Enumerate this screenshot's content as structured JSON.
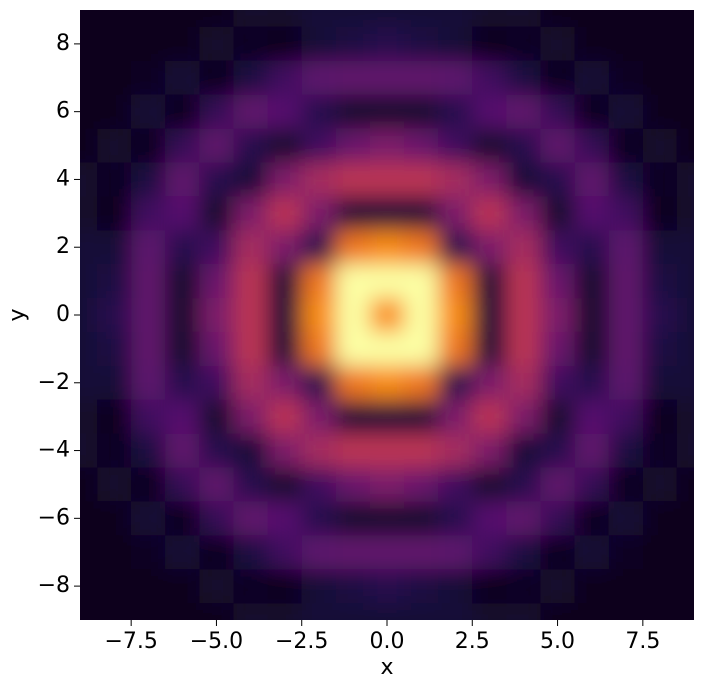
{
  "chart_data": {
    "type": "heatmap",
    "colormap": "inferno",
    "x_label": "x",
    "y_label": "y",
    "x": [
      -9,
      -8,
      -7,
      -6,
      -5,
      -4,
      -3,
      -2,
      -1,
      0,
      1,
      2,
      3,
      4,
      5,
      6,
      7,
      8,
      9
    ],
    "y": [
      9,
      8,
      7,
      6,
      5,
      4,
      3,
      2,
      1,
      0,
      -1,
      -2,
      -3,
      -4,
      -5,
      -6,
      -7,
      -8,
      -9
    ],
    "z": [
      [
        0.05,
        0.05,
        0.05,
        0.05,
        0.05,
        0.08,
        0.08,
        0.1,
        0.1,
        0.1,
        0.1,
        0.1,
        0.08,
        0.08,
        0.05,
        0.05,
        0.05,
        0.05,
        0.05
      ],
      [
        0.05,
        0.05,
        0.05,
        0.05,
        0.08,
        0.06,
        0.05,
        0.1,
        0.12,
        0.15,
        0.12,
        0.1,
        0.05,
        0.06,
        0.08,
        0.05,
        0.05,
        0.05,
        0.05
      ],
      [
        0.05,
        0.05,
        0.06,
        0.1,
        0.05,
        0.12,
        0.2,
        0.27,
        0.28,
        0.28,
        0.28,
        0.27,
        0.2,
        0.12,
        0.05,
        0.1,
        0.06,
        0.05,
        0.05
      ],
      [
        0.05,
        0.05,
        0.1,
        0.05,
        0.18,
        0.28,
        0.25,
        0.15,
        0.08,
        0.08,
        0.08,
        0.15,
        0.25,
        0.28,
        0.18,
        0.05,
        0.1,
        0.05,
        0.05
      ],
      [
        0.05,
        0.08,
        0.05,
        0.18,
        0.28,
        0.15,
        0.08,
        0.2,
        0.3,
        0.35,
        0.3,
        0.2,
        0.08,
        0.15,
        0.28,
        0.18,
        0.05,
        0.08,
        0.05
      ],
      [
        0.08,
        0.06,
        0.12,
        0.28,
        0.15,
        0.1,
        0.35,
        0.45,
        0.5,
        0.5,
        0.5,
        0.45,
        0.35,
        0.1,
        0.15,
        0.28,
        0.12,
        0.06,
        0.08
      ],
      [
        0.08,
        0.05,
        0.2,
        0.25,
        0.08,
        0.35,
        0.5,
        0.35,
        0.1,
        0.1,
        0.1,
        0.35,
        0.5,
        0.35,
        0.08,
        0.25,
        0.2,
        0.05,
        0.08
      ],
      [
        0.1,
        0.1,
        0.27,
        0.15,
        0.2,
        0.45,
        0.35,
        0.15,
        0.7,
        0.75,
        0.7,
        0.15,
        0.35,
        0.45,
        0.2,
        0.15,
        0.27,
        0.1,
        0.1
      ],
      [
        0.1,
        0.12,
        0.28,
        0.08,
        0.3,
        0.5,
        0.1,
        0.7,
        1,
        1,
        1,
        0.7,
        0.1,
        0.5,
        0.3,
        0.08,
        0.28,
        0.12,
        0.1
      ],
      [
        0.1,
        0.15,
        0.28,
        0.08,
        0.35,
        0.5,
        0.1,
        0.75,
        1,
        0.75,
        1,
        0.75,
        0.1,
        0.5,
        0.35,
        0.08,
        0.28,
        0.15,
        0.1
      ],
      [
        0.1,
        0.12,
        0.28,
        0.08,
        0.3,
        0.5,
        0.1,
        0.7,
        1,
        1,
        1,
        0.7,
        0.1,
        0.5,
        0.3,
        0.08,
        0.28,
        0.12,
        0.1
      ],
      [
        0.1,
        0.1,
        0.27,
        0.15,
        0.2,
        0.45,
        0.35,
        0.15,
        0.7,
        0.75,
        0.7,
        0.15,
        0.35,
        0.45,
        0.2,
        0.15,
        0.27,
        0.1,
        0.1
      ],
      [
        0.08,
        0.05,
        0.2,
        0.25,
        0.08,
        0.35,
        0.5,
        0.35,
        0.1,
        0.1,
        0.1,
        0.35,
        0.5,
        0.35,
        0.08,
        0.25,
        0.2,
        0.05,
        0.08
      ],
      [
        0.08,
        0.06,
        0.12,
        0.28,
        0.15,
        0.1,
        0.35,
        0.45,
        0.5,
        0.5,
        0.5,
        0.45,
        0.35,
        0.1,
        0.15,
        0.28,
        0.12,
        0.06,
        0.08
      ],
      [
        0.05,
        0.08,
        0.05,
        0.18,
        0.28,
        0.15,
        0.08,
        0.2,
        0.3,
        0.35,
        0.3,
        0.2,
        0.08,
        0.15,
        0.28,
        0.18,
        0.05,
        0.08,
        0.05
      ],
      [
        0.05,
        0.05,
        0.1,
        0.05,
        0.18,
        0.28,
        0.25,
        0.15,
        0.08,
        0.08,
        0.08,
        0.15,
        0.25,
        0.28,
        0.18,
        0.05,
        0.1,
        0.05,
        0.05
      ],
      [
        0.05,
        0.05,
        0.06,
        0.1,
        0.05,
        0.12,
        0.2,
        0.27,
        0.28,
        0.28,
        0.28,
        0.27,
        0.2,
        0.12,
        0.05,
        0.1,
        0.06,
        0.05,
        0.05
      ],
      [
        0.05,
        0.05,
        0.05,
        0.05,
        0.08,
        0.06,
        0.05,
        0.1,
        0.12,
        0.15,
        0.12,
        0.1,
        0.05,
        0.06,
        0.08,
        0.05,
        0.05,
        0.05,
        0.05
      ],
      [
        0.05,
        0.05,
        0.05,
        0.05,
        0.05,
        0.08,
        0.08,
        0.1,
        0.1,
        0.1,
        0.1,
        0.1,
        0.08,
        0.08,
        0.05,
        0.05,
        0.05,
        0.05,
        0.05
      ]
    ],
    "xlim": [
      -9,
      9
    ],
    "ylim": [
      -9,
      9
    ],
    "xticks": [
      {
        "value": -7.5,
        "label": "−7.5"
      },
      {
        "value": -5,
        "label": "−5.0"
      },
      {
        "value": -2.5,
        "label": "−2.5"
      },
      {
        "value": 0,
        "label": "0.0"
      },
      2.5,
      {
        "value": 5,
        "label": "5.0"
      },
      7.5
    ],
    "yticks": [
      {
        "value": -8,
        "label": "−8"
      },
      {
        "value": -6,
        "label": "−6"
      },
      {
        "value": -4,
        "label": "−4"
      },
      {
        "value": -2,
        "label": "−2"
      },
      0,
      2,
      4,
      6,
      8
    ]
  }
}
